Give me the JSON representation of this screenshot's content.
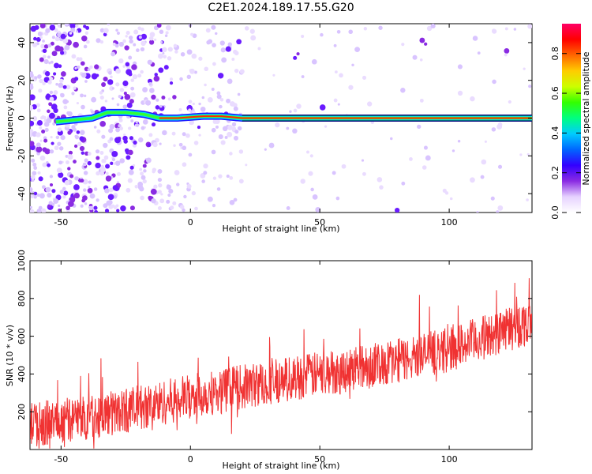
{
  "title": "C2E1.2024.189.17.55.G20",
  "chart_data": [
    {
      "type": "heatmap",
      "xlabel": "Height of straight line (km)",
      "ylabel": "Frequency (Hz)",
      "xlim": [
        -62,
        132
      ],
      "ylim": [
        -50,
        50
      ],
      "xticks": [
        -50,
        0,
        50,
        100
      ],
      "yticks": [
        -40,
        -20,
        0,
        20,
        40
      ],
      "colorbar": {
        "label": "Normalized spectral amplitude",
        "range": [
          0,
          0.95
        ],
        "ticks": [
          0.0,
          0.2,
          0.4,
          0.6,
          0.8
        ],
        "colors": [
          "#ffffff",
          "#e6d2ff",
          "#8a2be2",
          "#3300ff",
          "#0066ff",
          "#00ccff",
          "#00ff80",
          "#33ff00",
          "#ccff00",
          "#ffcc00",
          "#ff6600",
          "#ff0000",
          "#ff0066"
        ]
      },
      "ridge": [
        {
          "x": -52,
          "y": -2
        },
        {
          "x": -45,
          "y": -1
        },
        {
          "x": -38,
          "y": 0
        },
        {
          "x": -32,
          "y": 3
        },
        {
          "x": -25,
          "y": 3
        },
        {
          "x": -18,
          "y": 2
        },
        {
          "x": -12,
          "y": 0
        },
        {
          "x": -5,
          "y": 0
        },
        {
          "x": 5,
          "y": 1
        },
        {
          "x": 12,
          "y": 1
        },
        {
          "x": 20,
          "y": 0
        },
        {
          "x": 60,
          "y": 0
        },
        {
          "x": 90,
          "y": 0
        },
        {
          "x": 132,
          "y": 0
        }
      ]
    },
    {
      "type": "line",
      "xlabel": "Height of straight line (km)",
      "ylabel": "SNR (10 * v/v)",
      "xlim": [
        -62,
        132
      ],
      "ylim": [
        0,
        1000
      ],
      "xticks": [
        -50,
        0,
        50,
        100
      ],
      "yticks": [
        200,
        400,
        600,
        800,
        1000
      ],
      "series": [
        {
          "trend": [
            {
              "x": -62,
              "y": 130
            },
            {
              "x": -40,
              "y": 170
            },
            {
              "x": -20,
              "y": 220
            },
            {
              "x": 0,
              "y": 280
            },
            {
              "x": 20,
              "y": 330
            },
            {
              "x": 40,
              "y": 380
            },
            {
              "x": 60,
              "y": 420
            },
            {
              "x": 80,
              "y": 470
            },
            {
              "x": 100,
              "y": 530
            },
            {
              "x": 115,
              "y": 600
            },
            {
              "x": 132,
              "y": 680
            }
          ],
          "spread": 120,
          "color": "#f03232"
        }
      ]
    }
  ]
}
